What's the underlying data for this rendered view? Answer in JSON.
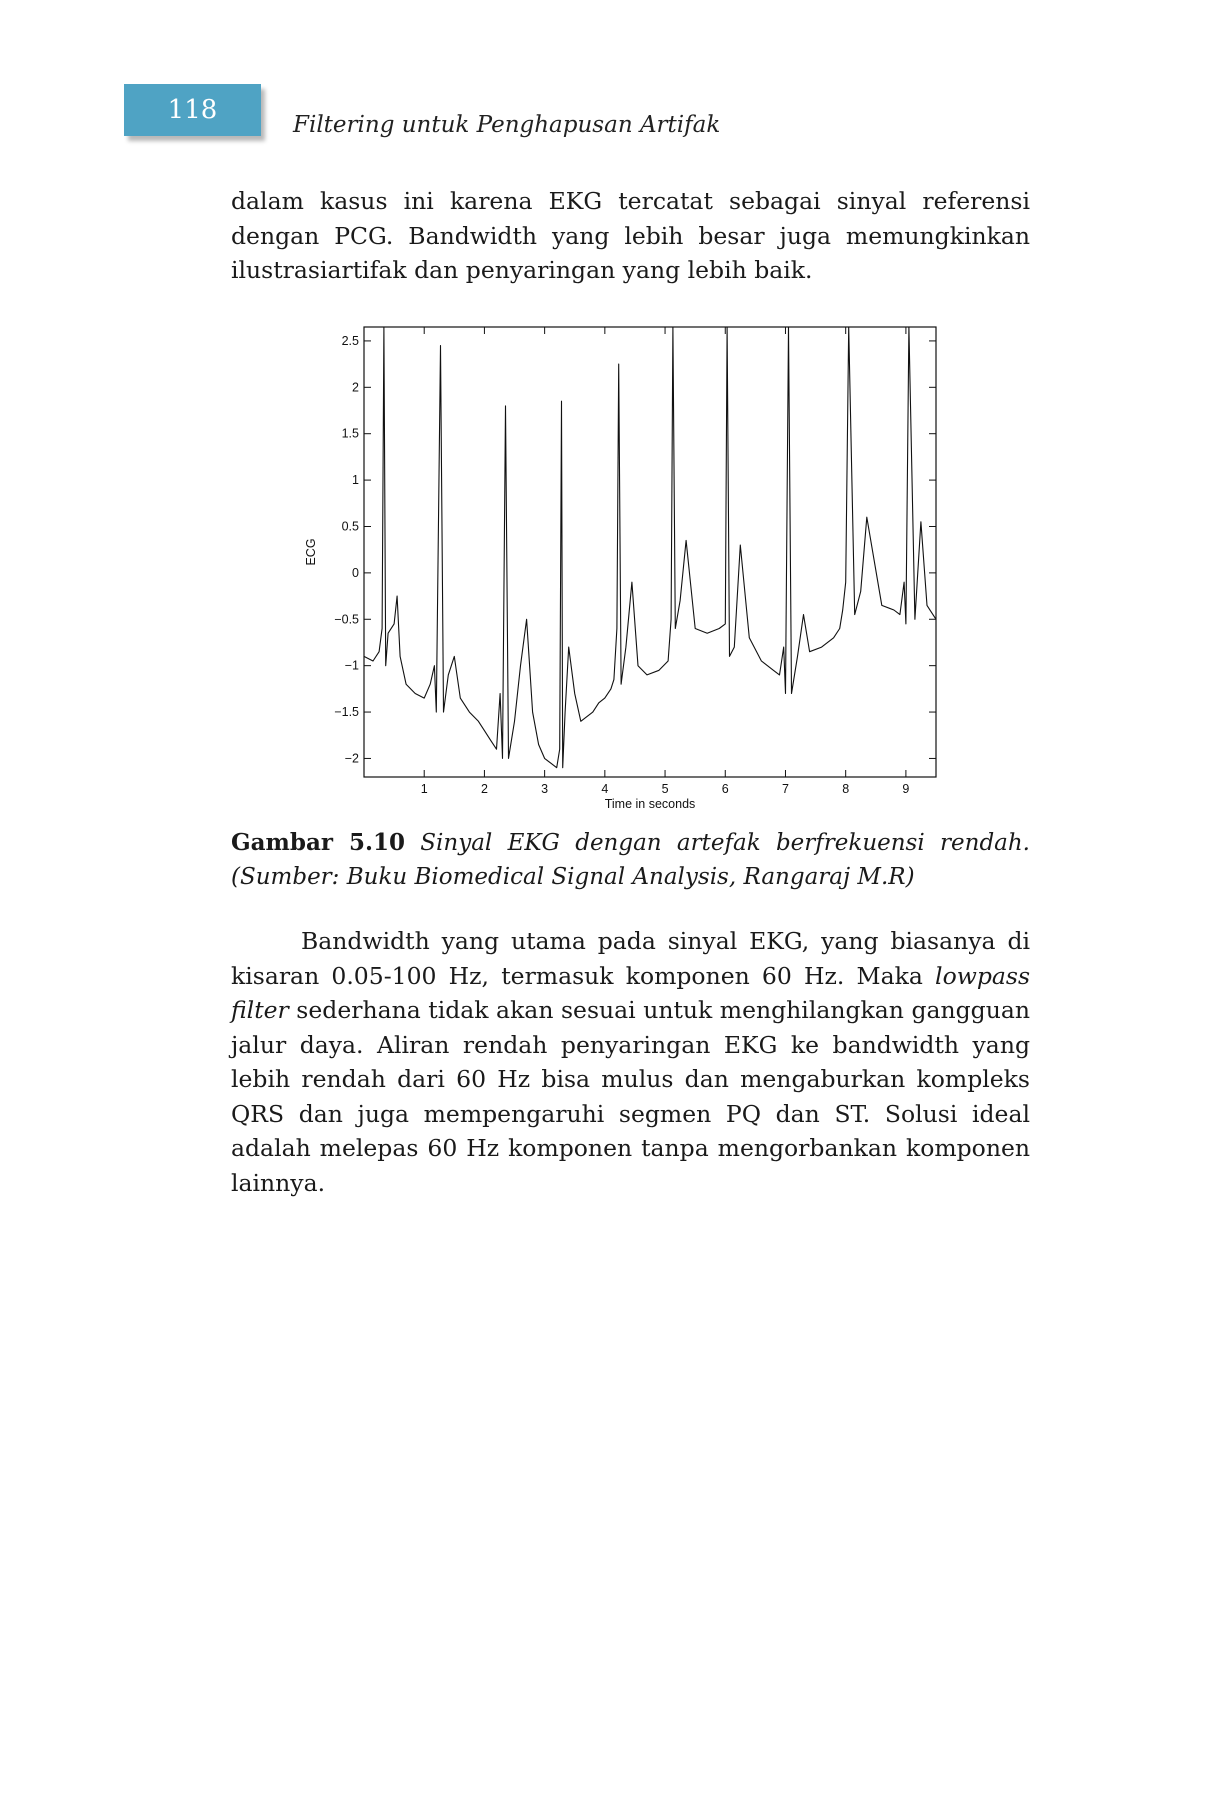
{
  "header": {
    "page_number": "118",
    "running_title": "Filtering untuk Penghapusan Artifak"
  },
  "body": {
    "paragraph_1": "dalam kasus ini karena EKG tercatat sebagai sinyal referensi dengan PCG. Bandwidth yang lebih besar juga memungkinkan ilustrasiartifak dan penyaringan yang lebih baik.",
    "paragraph_2_a": "Bandwidth yang utama pada sinyal EKG, yang biasanya di kisaran 0.05-100 Hz, termasuk komponen 60 Hz. Maka ",
    "paragraph_2_em": "lowpass filter",
    "paragraph_2_b": " sederhana tidak akan sesuai untuk menghilangkan gangguan jalur daya. Aliran rendah penyaringan EKG ke bandwidth yang lebih rendah dari 60 Hz bisa mulus dan mengaburkan kompleks QRS dan juga mempengaruhi segmen PQ dan ST. Solusi ideal adalah melepas 60 Hz komponen tanpa mengorbankan komponen lainnya."
  },
  "figure": {
    "caption_label": "Gambar 5.10",
    "caption_text": " Sinyal EKG dengan artefak berfrekuensi rendah. (Sumber: Buku Biomedical Signal Analysis, Rangaraj M.R)"
  },
  "chart_data": {
    "type": "line",
    "title": "",
    "xlabel": "Time in seconds",
    "ylabel": "ECG",
    "xlim": [
      0,
      9.5
    ],
    "ylim": [
      -2.2,
      2.65
    ],
    "x_ticks": [
      1,
      2,
      3,
      4,
      5,
      6,
      7,
      8,
      9
    ],
    "x_tick_labels": [
      "1",
      "2",
      "3",
      "4",
      "5",
      "6",
      "7",
      "8",
      "9"
    ],
    "y_ticks": [
      -2,
      -1.5,
      -1,
      -0.5,
      0,
      0.5,
      1,
      1.5,
      2,
      2.5
    ],
    "y_tick_labels": [
      "−2",
      "−1.5",
      "−1",
      "−0.5",
      "0",
      "0.5",
      "1",
      "1.5",
      "2",
      "2.5"
    ],
    "grid": false,
    "series": [
      {
        "color": "#111111",
        "x": [
          0.0,
          0.15,
          0.25,
          0.3,
          0.33,
          0.36,
          0.4,
          0.5,
          0.55,
          0.6,
          0.7,
          0.85,
          1.0,
          1.1,
          1.17,
          1.2,
          1.27,
          1.32,
          1.4,
          1.5,
          1.6,
          1.75,
          1.9,
          2.0,
          2.1,
          2.2,
          2.26,
          2.3,
          2.35,
          2.4,
          2.5,
          2.6,
          2.7,
          2.8,
          2.9,
          3.0,
          3.1,
          3.2,
          3.25,
          3.28,
          3.3,
          3.34,
          3.4,
          3.5,
          3.6,
          3.7,
          3.8,
          3.9,
          4.0,
          4.1,
          4.15,
          4.2,
          4.23,
          4.27,
          4.35,
          4.45,
          4.55,
          4.7,
          4.9,
          5.05,
          5.1,
          5.13,
          5.17,
          5.25,
          5.35,
          5.5,
          5.7,
          5.9,
          6.0,
          6.03,
          6.07,
          6.15,
          6.25,
          6.4,
          6.6,
          6.8,
          6.9,
          6.97,
          7.0,
          7.05,
          7.1,
          7.2,
          7.3,
          7.4,
          7.6,
          7.8,
          7.9,
          7.95,
          8.0,
          8.05,
          8.15,
          8.25,
          8.35,
          8.6,
          8.8,
          8.9,
          8.97,
          9.0,
          9.05,
          9.15,
          9.25,
          9.35,
          9.5
        ],
        "y": [
          -0.9,
          -0.95,
          -0.85,
          -0.6,
          2.65,
          -1.0,
          -0.65,
          -0.55,
          -0.25,
          -0.9,
          -1.2,
          -1.3,
          -1.35,
          -1.2,
          -1.0,
          -1.5,
          2.45,
          -1.5,
          -1.1,
          -0.9,
          -1.35,
          -1.5,
          -1.6,
          -1.7,
          -1.8,
          -1.9,
          -1.3,
          -2.0,
          1.8,
          -2.0,
          -1.6,
          -1.0,
          -0.5,
          -1.5,
          -1.85,
          -2.0,
          -2.05,
          -2.1,
          -1.9,
          1.85,
          -2.1,
          -1.5,
          -0.8,
          -1.3,
          -1.6,
          -1.55,
          -1.5,
          -1.4,
          -1.35,
          -1.25,
          -1.15,
          -0.6,
          2.25,
          -1.2,
          -0.8,
          -0.1,
          -1.0,
          -1.1,
          -1.05,
          -0.95,
          -0.5,
          2.65,
          -0.6,
          -0.3,
          0.35,
          -0.6,
          -0.65,
          -0.6,
          -0.55,
          2.65,
          -0.9,
          -0.8,
          0.3,
          -0.7,
          -0.95,
          -1.05,
          -1.1,
          -0.8,
          -1.3,
          2.65,
          -1.3,
          -0.9,
          -0.45,
          -0.85,
          -0.8,
          -0.7,
          -0.6,
          -0.4,
          -0.1,
          2.65,
          -0.45,
          -0.2,
          0.6,
          -0.35,
          -0.4,
          -0.45,
          -0.1,
          -0.55,
          2.65,
          -0.5,
          0.55,
          -0.35,
          -0.5
        ]
      }
    ]
  }
}
